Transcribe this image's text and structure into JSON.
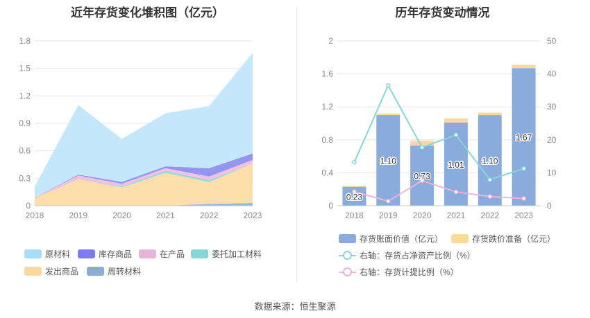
{
  "left": {
    "title": "近年存货变化堆积图（亿元）",
    "chart_data": {
      "type": "area",
      "stacked": true,
      "x": [
        "2018",
        "2019",
        "2020",
        "2021",
        "2022",
        "2023"
      ],
      "ylim": [
        0,
        1.8
      ],
      "yticks": [
        "0",
        "0.3",
        "0.6",
        "0.9",
        "1.2",
        "1.5",
        "1.8"
      ],
      "grid": true,
      "legend_position": "bottom",
      "series": [
        {
          "name": "周转材料",
          "color": "#8fb0dc",
          "values": [
            0.0,
            0.0,
            0.0,
            0.0,
            0.02,
            0.03
          ]
        },
        {
          "name": "发出商品",
          "color": "#fbdba2",
          "values": [
            0.08,
            0.29,
            0.2,
            0.36,
            0.24,
            0.43
          ]
        },
        {
          "name": "委托加工材料",
          "color": "#8ad7d8",
          "values": [
            0.0,
            0.0,
            0.01,
            0.02,
            0.02,
            0.0
          ]
        },
        {
          "name": "在产品",
          "color": "#efbcde",
          "values": [
            0.01,
            0.04,
            0.03,
            0.03,
            0.04,
            0.04
          ]
        },
        {
          "name": "库存商品",
          "color": "#8a8cf0",
          "values": [
            0.0,
            0.01,
            0.02,
            0.02,
            0.09,
            0.07
          ]
        },
        {
          "name": "原材料",
          "color": "#bfe6f8",
          "values": [
            0.12,
            0.76,
            0.47,
            0.58,
            0.68,
            1.1
          ]
        }
      ]
    },
    "legend": [
      {
        "name": "原材料",
        "color": "#a8dcf7"
      },
      {
        "name": "库存商品",
        "color": "#7b7cf2"
      },
      {
        "name": "在产品",
        "color": "#e8b5da"
      },
      {
        "name": "委托加工材料",
        "color": "#86d6d7"
      },
      {
        "name": "发出商品",
        "color": "#fbd8a0"
      },
      {
        "name": "周转材料",
        "color": "#8aacdc"
      }
    ]
  },
  "right": {
    "title": "历年存货变动情况",
    "chart_data": {
      "type": "bar",
      "categories": [
        "2018",
        "2019",
        "2020",
        "2021",
        "2022",
        "2023"
      ],
      "ylim": [
        0,
        2
      ],
      "yticks": [
        "0",
        "0.4",
        "0.8",
        "1.2",
        "1.6",
        "2"
      ],
      "y2lim": [
        0,
        50
      ],
      "y2ticks": [
        "0",
        "10",
        "20",
        "30",
        "40",
        "50"
      ],
      "bar_series": [
        {
          "name": "存货账面价值（亿元）",
          "color": "#8aacdc",
          "values": [
            0.23,
            1.1,
            0.73,
            1.01,
            1.1,
            1.67
          ]
        },
        {
          "name": "存货跌价准备（亿元）",
          "color": "#fbd8a0",
          "values": [
            0.01,
            0.02,
            0.06,
            0.05,
            0.03,
            0.04
          ]
        }
      ],
      "bar_labels": [
        "0.23",
        "1.10",
        "0.73",
        "1.01",
        "1.10",
        "1.67"
      ],
      "line_series": [
        {
          "name": "右轴：存货占净资产比例（%）",
          "color": "#86d6d7",
          "values": [
            13.2,
            36.5,
            17.7,
            21.5,
            7.9,
            11.3
          ]
        },
        {
          "name": "右轴：存货计提比例（%）",
          "color": "#e8b5da",
          "values": [
            4.3,
            1.4,
            7.6,
            4.2,
            2.8,
            2.2
          ]
        }
      ]
    }
  },
  "footer": "数据来源：恒生聚源"
}
